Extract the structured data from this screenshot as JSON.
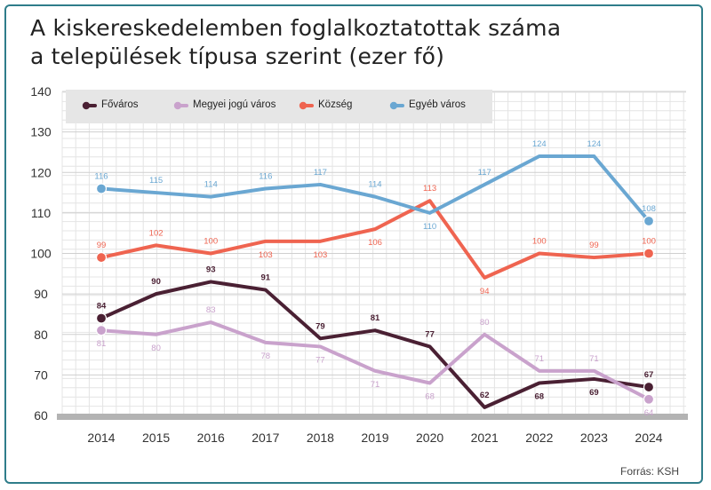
{
  "title_line1": "A kiskereskedelemben foglalkoztatottak száma",
  "title_line2": "a települések típusa szerint (ezer fő)",
  "source": "Forrás: KSH",
  "chart_data": {
    "type": "line",
    "x": [
      "2014",
      "2015",
      "2016",
      "2017",
      "2018",
      "2019",
      "2020",
      "2021",
      "2022",
      "2023",
      "2024"
    ],
    "ylim": [
      60,
      140
    ],
    "yticks": [
      60,
      70,
      80,
      90,
      100,
      110,
      120,
      130,
      140
    ],
    "grid": true,
    "legend_position": "top-left",
    "series": [
      {
        "name": "Főváros",
        "color": "#4a2033",
        "values": [
          84,
          90,
          93,
          91,
          79,
          81,
          77,
          62,
          68,
          69,
          67
        ],
        "labels": [
          "84",
          "90",
          "93",
          "91",
          "79",
          "81",
          "77",
          "62",
          "68",
          "69",
          "67"
        ],
        "label_pos": [
          "above",
          "above",
          "above",
          "above",
          "above",
          "above",
          "above",
          "above",
          "below",
          "below",
          "above"
        ]
      },
      {
        "name": "Megyei jogú város",
        "color": "#c9a2cc",
        "values": [
          81,
          80,
          83,
          78,
          77,
          71,
          68,
          80,
          71,
          71,
          64
        ],
        "labels": [
          "81",
          "80",
          "83",
          "78",
          "77",
          "71",
          "68",
          "80",
          "71",
          "71",
          "64"
        ],
        "label_pos": [
          "below",
          "below",
          "above",
          "below",
          "below",
          "below",
          "below",
          "above",
          "above",
          "above",
          "below"
        ]
      },
      {
        "name": "Község",
        "color": "#ef6450",
        "values": [
          99,
          102,
          100,
          103,
          103,
          106,
          113,
          94,
          100,
          99,
          100
        ],
        "labels": [
          "99",
          "102",
          "100",
          "103",
          "103",
          "106",
          "113",
          "94",
          "100",
          "99",
          "100"
        ],
        "label_pos": [
          "above",
          "above",
          "above",
          "below",
          "below",
          "below",
          "above",
          "below",
          "above",
          "above",
          "above"
        ]
      },
      {
        "name": "Egyéb város",
        "color": "#6aa7d2",
        "values": [
          116,
          115,
          114,
          116,
          117,
          114,
          110,
          117,
          124,
          124,
          108
        ],
        "labels": [
          "116",
          "115",
          "114",
          "116",
          "117",
          "114",
          "110",
          "117",
          "124",
          "124",
          "108"
        ],
        "label_pos": [
          "above",
          "above",
          "above",
          "above",
          "above",
          "above",
          "below",
          "above",
          "above",
          "above",
          "above"
        ]
      }
    ]
  }
}
